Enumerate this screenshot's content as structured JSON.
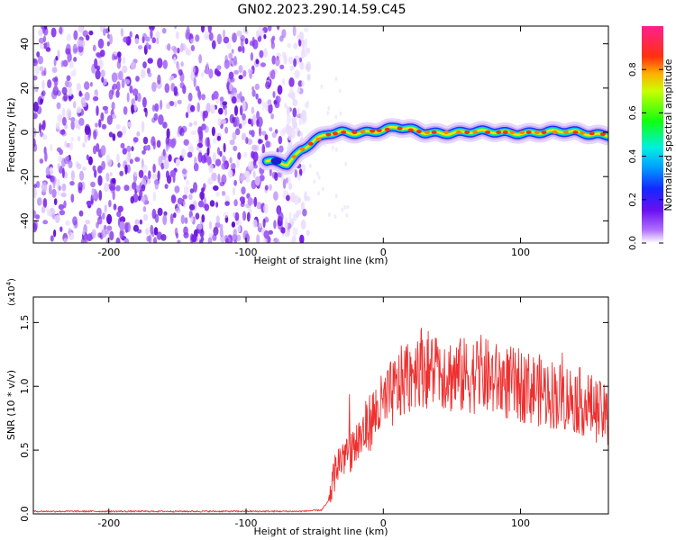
{
  "title": "GN02.2023.290.14.59.C45",
  "chart_data": [
    {
      "type": "heatmap",
      "panel": "spectrogram",
      "xlabel": "Height of straight line (km)",
      "ylabel": "Frequency (Hz)",
      "xlim": [
        -255,
        164
      ],
      "ylim": [
        -50,
        48
      ],
      "x_ticks": [
        -200,
        -100,
        0,
        100
      ],
      "x_tick_labels": [
        "-200",
        "-100",
        "0",
        "100"
      ],
      "y_ticks": [
        -40,
        -20,
        0,
        20,
        40
      ],
      "y_tick_labels": [
        "-40",
        "-20",
        "0",
        "20",
        "40"
      ],
      "colorbar": {
        "label": "Normalized spectral amplitude",
        "range": [
          0,
          1
        ],
        "ticks": [
          0.0,
          0.2,
          0.4,
          0.6,
          0.8
        ],
        "tick_labels": [
          "0.0",
          "0.2",
          "0.4",
          "0.6",
          "0.8"
        ],
        "colormap": "rainbow (white-purple-blue-cyan-green-yellow-red-pink)"
      },
      "noise_region_x": [
        -255,
        -62
      ],
      "signal_track": {
        "x": [
          -85,
          -75,
          -70,
          -60,
          -50,
          -40,
          -30,
          -20,
          -10,
          0,
          10,
          20,
          30,
          40,
          60,
          80,
          100,
          120,
          140,
          164
        ],
        "freq_hz": [
          -13,
          -13,
          -14,
          -8,
          -4,
          -1,
          0,
          0,
          0.5,
          1,
          2,
          1,
          0,
          0,
          0,
          0,
          0,
          0,
          0,
          -1
        ]
      }
    },
    {
      "type": "line",
      "panel": "snr",
      "xlabel": "Height of straight line (km)",
      "ylabel": "SNR (10 * v/v)",
      "y_multiplier": "(x10",
      "y_multiplier_exp": "4",
      "y_multiplier_close": ")",
      "xlim": [
        -255,
        164
      ],
      "ylim": [
        0,
        1.7
      ],
      "x_ticks": [
        -200,
        -100,
        0,
        100
      ],
      "x_tick_labels": [
        "-200",
        "-100",
        "0",
        "100"
      ],
      "y_ticks": [
        0.0,
        0.5,
        1.0,
        1.5
      ],
      "y_tick_labels": [
        "0.0",
        "0.5",
        "1.0",
        "1.5"
      ],
      "line_color": "#ee3030",
      "series": [
        {
          "name": "SNR",
          "x": [
            -255,
            -200,
            -150,
            -100,
            -60,
            -45,
            -40,
            -35,
            -30,
            -25,
            -20,
            -15,
            -10,
            -5,
            0,
            5,
            10,
            15,
            20,
            25,
            30,
            35,
            40,
            45,
            50,
            60,
            70,
            80,
            90,
            100,
            110,
            120,
            130,
            140,
            150,
            160,
            164
          ],
          "y": [
            0.02,
            0.02,
            0.02,
            0.02,
            0.02,
            0.03,
            0.1,
            0.35,
            0.45,
            0.5,
            0.55,
            0.62,
            0.72,
            0.8,
            0.85,
            0.92,
            0.98,
            1.05,
            1.1,
            1.18,
            1.15,
            1.12,
            1.15,
            1.12,
            1.08,
            1.08,
            1.1,
            1.05,
            1.03,
            1.0,
            0.98,
            0.95,
            0.92,
            0.9,
            0.85,
            0.78,
            0.74
          ]
        }
      ]
    }
  ]
}
